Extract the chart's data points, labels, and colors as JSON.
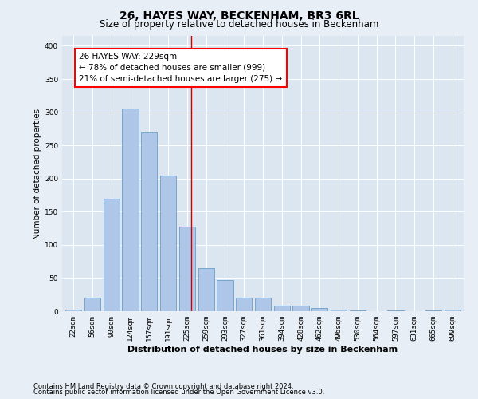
{
  "title": "26, HAYES WAY, BECKENHAM, BR3 6RL",
  "subtitle": "Size of property relative to detached houses in Beckenham",
  "xlabel": "Distribution of detached houses by size in Beckenham",
  "ylabel": "Number of detached properties",
  "bin_labels": [
    "22sqm",
    "56sqm",
    "90sqm",
    "124sqm",
    "157sqm",
    "191sqm",
    "225sqm",
    "259sqm",
    "293sqm",
    "327sqm",
    "361sqm",
    "394sqm",
    "428sqm",
    "462sqm",
    "496sqm",
    "530sqm",
    "564sqm",
    "597sqm",
    "631sqm",
    "665sqm",
    "699sqm"
  ],
  "bar_values": [
    3,
    20,
    170,
    305,
    270,
    205,
    128,
    65,
    47,
    20,
    20,
    8,
    8,
    5,
    3,
    1,
    0,
    1,
    0,
    1,
    2
  ],
  "bar_color": "#aec6e8",
  "bar_edgecolor": "#6a9ec8",
  "vline_x": 6.22,
  "vline_color": "#cc0000",
  "annotation_text": "26 HAYES WAY: 229sqm\n← 78% of detached houses are smaller (999)\n21% of semi-detached houses are larger (275) →",
  "ylim": [
    0,
    415
  ],
  "yticks": [
    0,
    50,
    100,
    150,
    200,
    250,
    300,
    350,
    400
  ],
  "footnote1": "Contains HM Land Registry data © Crown copyright and database right 2024.",
  "footnote2": "Contains public sector information licensed under the Open Government Licence v3.0.",
  "bg_color": "#e8eef5",
  "plot_bg_color": "#dce6f0",
  "title_fontsize": 10,
  "subtitle_fontsize": 8.5,
  "xlabel_fontsize": 8,
  "ylabel_fontsize": 7.5,
  "annotation_fontsize": 7.5,
  "tick_fontsize": 6.5,
  "footnote_fontsize": 6
}
